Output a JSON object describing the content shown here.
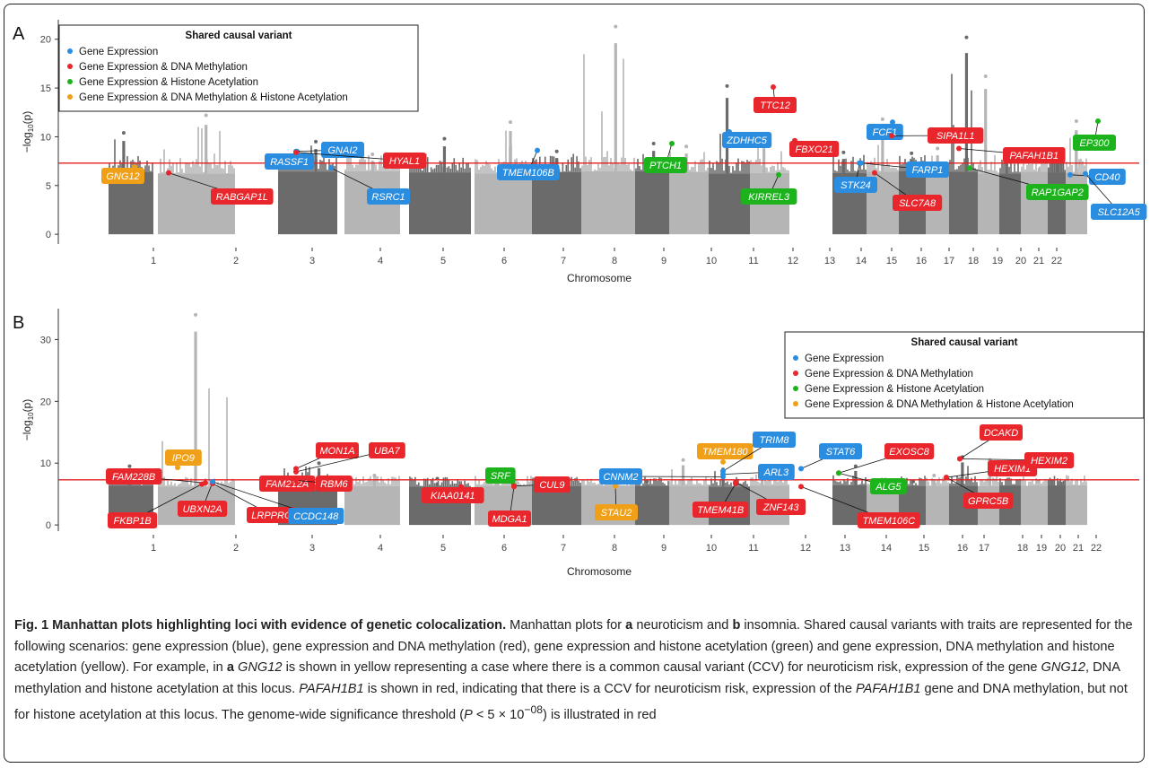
{
  "chart_data": [
    {
      "type": "scatter",
      "panel_label": "A",
      "xlabel": "Chromosome",
      "ylabel": "−log10(p)",
      "ylim": [
        -1,
        22
      ],
      "yticks": [
        0,
        5,
        10,
        15,
        20
      ],
      "x_ticks": [
        "1",
        "2",
        "3",
        "4",
        "5",
        "6",
        "7",
        "8",
        "9",
        "10",
        "11",
        "12",
        "13",
        "14",
        "15",
        "16",
        "17",
        "18",
        "19",
        "20",
        "21",
        "22"
      ],
      "threshold": 7.3,
      "legend": {
        "title": "Shared causal variant",
        "placement": "top-left",
        "entries": [
          {
            "label": "Gene Expression",
            "color": "#2b8de0"
          },
          {
            "label": "Gene Expression & DNA Methylation",
            "color": "#e8262b"
          },
          {
            "label": "Gene Expression & Histone Acetylation",
            "color": "#1db31d"
          },
          {
            "label": "Gene Expression & DNA Methylation & Histone Acetylation",
            "color": "#f0a018"
          }
        ]
      },
      "chromosome_peaks": [
        {
          "chr": 1,
          "max": 10.4
        },
        {
          "chr": 2,
          "max": 12.2
        },
        {
          "chr": 3,
          "max": 9.5
        },
        {
          "chr": 4,
          "max": 8.2
        },
        {
          "chr": 5,
          "max": 9.8
        },
        {
          "chr": 6,
          "max": 11.5
        },
        {
          "chr": 7,
          "max": 8.5
        },
        {
          "chr": 8,
          "max": 21.3
        },
        {
          "chr": 9,
          "max": 9.3
        },
        {
          "chr": 10,
          "max": 9.0
        },
        {
          "chr": 11,
          "max": 15.2
        },
        {
          "chr": 12,
          "max": 9.6
        },
        {
          "chr": 13,
          "max": 8.4
        },
        {
          "chr": 14,
          "max": 11.8
        },
        {
          "chr": 15,
          "max": 8.3
        },
        {
          "chr": 16,
          "max": 8.8
        },
        {
          "chr": 17,
          "max": 20.2
        },
        {
          "chr": 18,
          "max": 16.2
        },
        {
          "chr": 19,
          "max": 8.2
        },
        {
          "chr": 20,
          "max": 7.4
        },
        {
          "chr": 21,
          "max": 7.8
        },
        {
          "chr": 22,
          "max": 11.6
        }
      ],
      "highlighted_genes": [
        {
          "gene": "GNG12",
          "chr": 1,
          "y": 6.9,
          "color": "#f0a018"
        },
        {
          "gene": "RABGAP1L",
          "chr": 1,
          "y": 6.3,
          "color": "#e8262b"
        },
        {
          "gene": "RASSF1",
          "chr": 3,
          "y": 8.5,
          "color": "#2b8de0"
        },
        {
          "gene": "GNAI2",
          "chr": 3,
          "y": 8.5,
          "color": "#2b8de0"
        },
        {
          "gene": "HYAL1",
          "chr": 3,
          "y": 8.4,
          "color": "#e8262b"
        },
        {
          "gene": "RSRC1",
          "chr": 3,
          "y": 6.8,
          "color": "#2b8de0"
        },
        {
          "gene": "TMEM106B",
          "chr": 7,
          "y": 8.6,
          "color": "#2b8de0"
        },
        {
          "gene": "PTCH1",
          "chr": 9,
          "y": 9.3,
          "color": "#1db31d"
        },
        {
          "gene": "ZDHHC5",
          "chr": 11,
          "y": 10.5,
          "color": "#2b8de0"
        },
        {
          "gene": "TTC12",
          "chr": 11,
          "y": 15.1,
          "color": "#e8262b"
        },
        {
          "gene": "FBXO21",
          "chr": 12,
          "y": 9.6,
          "color": "#e8262b"
        },
        {
          "gene": "KIRREL3",
          "chr": 11,
          "y": 6.1,
          "color": "#1db31d"
        },
        {
          "gene": "STK24",
          "chr": 13,
          "y": 7.3,
          "color": "#2b8de0"
        },
        {
          "gene": "FCF1",
          "chr": 14,
          "y": 11.5,
          "color": "#2b8de0"
        },
        {
          "gene": "SIPA1L1",
          "chr": 14,
          "y": 10.1,
          "color": "#e8262b"
        },
        {
          "gene": "FARP1",
          "chr": 13,
          "y": 7.3,
          "color": "#2b8de0"
        },
        {
          "gene": "SLC7A8",
          "chr": 14,
          "y": 6.3,
          "color": "#e8262b"
        },
        {
          "gene": "PAFAH1B1",
          "chr": 17,
          "y": 8.8,
          "color": "#e8262b"
        },
        {
          "gene": "EP300",
          "chr": 22,
          "y": 11.6,
          "color": "#1db31d"
        },
        {
          "gene": "RAP1GAP2",
          "chr": 17,
          "y": 6.8,
          "color": "#1db31d"
        },
        {
          "gene": "CD40",
          "chr": 20,
          "y": 6.1,
          "color": "#2b8de0"
        },
        {
          "gene": "SLC12A5",
          "chr": 20,
          "y": 6.2,
          "color": "#2b8de0"
        }
      ]
    },
    {
      "type": "scatter",
      "panel_label": "B",
      "xlabel": "Chromosome",
      "ylabel": "−log10(p)",
      "ylim": [
        -1,
        35
      ],
      "yticks": [
        0,
        10,
        20,
        30
      ],
      "x_ticks": [
        "1",
        "2",
        "3",
        "4",
        "5",
        "6",
        "7",
        "8",
        "9",
        "10",
        "11",
        "12",
        "13",
        "14",
        "15",
        "16",
        "17",
        "18",
        "19",
        "20",
        "21",
        "22"
      ],
      "threshold": 7.3,
      "legend": {
        "title": "Shared causal variant",
        "placement": "top-right",
        "entries": [
          {
            "label": "Gene Expression",
            "color": "#2b8de0"
          },
          {
            "label": "Gene Expression & DNA Methylation",
            "color": "#e8262b"
          },
          {
            "label": "Gene Expression & Histone Acetylation",
            "color": "#1db31d"
          },
          {
            "label": "Gene Expression & DNA Methylation & Histone Acetylation",
            "color": "#f0a018"
          }
        ]
      },
      "chromosome_peaks": [
        {
          "chr": 1,
          "max": 9.5
        },
        {
          "chr": 2,
          "max": 34.0
        },
        {
          "chr": 3,
          "max": 10.0
        },
        {
          "chr": 4,
          "max": 8.0
        },
        {
          "chr": 5,
          "max": 7.5
        },
        {
          "chr": 6,
          "max": 8.0
        },
        {
          "chr": 7,
          "max": 7.5
        },
        {
          "chr": 8,
          "max": 7.0
        },
        {
          "chr": 9,
          "max": 7.0
        },
        {
          "chr": 10,
          "max": 10.5
        },
        {
          "chr": 11,
          "max": 9.0
        },
        {
          "chr": 12,
          "max": 9.2
        },
        {
          "chr": 13,
          "max": 9.5
        },
        {
          "chr": 14,
          "max": 7.0
        },
        {
          "chr": 15,
          "max": 7.0
        },
        {
          "chr": 16,
          "max": 8.0
        },
        {
          "chr": 17,
          "max": 11.0
        },
        {
          "chr": 18,
          "max": 10.5
        },
        {
          "chr": 19,
          "max": 6.0
        },
        {
          "chr": 20,
          "max": 7.0
        },
        {
          "chr": 21,
          "max": 5.0
        },
        {
          "chr": 22,
          "max": 5.0
        }
      ],
      "highlighted_genes": [
        {
          "gene": "FAM228B",
          "chr": 2,
          "y": 6.8,
          "color": "#e8262b"
        },
        {
          "gene": "IPO9",
          "chr": 1,
          "y": 9.3,
          "color": "#f0a018"
        },
        {
          "gene": "FKBP1B",
          "chr": 2,
          "y": 6.6,
          "color": "#e8262b"
        },
        {
          "gene": "UBXN2A",
          "chr": 2,
          "y": 6.9,
          "color": "#e8262b"
        },
        {
          "gene": "LRPPRC",
          "chr": 2,
          "y": 6.7,
          "color": "#e8262b"
        },
        {
          "gene": "FAM212A",
          "chr": 3,
          "y": 7.5,
          "color": "#e8262b"
        },
        {
          "gene": "MON1A",
          "chr": 3,
          "y": 9.1,
          "color": "#e8262b"
        },
        {
          "gene": "UBA7",
          "chr": 3,
          "y": 8.6,
          "color": "#e8262b"
        },
        {
          "gene": "RBM6",
          "chr": 3,
          "y": 7.2,
          "color": "#e8262b"
        },
        {
          "gene": "CCDC148",
          "chr": 2,
          "y": 7.0,
          "color": "#2b8de0"
        },
        {
          "gene": "KIAA0141",
          "chr": 5,
          "y": 6.2,
          "color": "#e8262b"
        },
        {
          "gene": "SRF",
          "chr": 6,
          "y": 6.4,
          "color": "#1db31d"
        },
        {
          "gene": "CUL9",
          "chr": 6,
          "y": 6.3,
          "color": "#e8262b"
        },
        {
          "gene": "MDGA1",
          "chr": 6,
          "y": 6.2,
          "color": "#e8262b"
        },
        {
          "gene": "STAU2",
          "chr": 8,
          "y": 6.3,
          "color": "#f0a018"
        },
        {
          "gene": "CNNM2",
          "chr": 10,
          "y": 7.8,
          "color": "#2b8de0"
        },
        {
          "gene": "TMEM180",
          "chr": 10,
          "y": 10.2,
          "color": "#f0a018"
        },
        {
          "gene": "TRIM8",
          "chr": 10,
          "y": 8.7,
          "color": "#2b8de0"
        },
        {
          "gene": "ARL3",
          "chr": 10,
          "y": 8.2,
          "color": "#2b8de0"
        },
        {
          "gene": "TMEM41B",
          "chr": 11,
          "y": 6.7,
          "color": "#e8262b"
        },
        {
          "gene": "ZNF143",
          "chr": 11,
          "y": 6.9,
          "color": "#e8262b"
        },
        {
          "gene": "STAT6",
          "chr": 12,
          "y": 9.1,
          "color": "#2b8de0"
        },
        {
          "gene": "TMEM106C",
          "chr": 12,
          "y": 6.2,
          "color": "#e8262b"
        },
        {
          "gene": "EXOSC8",
          "chr": 13,
          "y": 8.4,
          "color": "#e8262b"
        },
        {
          "gene": "ALG5",
          "chr": 13,
          "y": 8.4,
          "color": "#1db31d"
        },
        {
          "gene": "DCAKD",
          "chr": 17,
          "y": 10.7,
          "color": "#e8262b"
        },
        {
          "gene": "HEXIM1",
          "chr": 17,
          "y": 7.7,
          "color": "#e8262b"
        },
        {
          "gene": "HEXIM2",
          "chr": 17,
          "y": 10.7,
          "color": "#e8262b"
        },
        {
          "gene": "GPRC5B",
          "chr": 16,
          "y": 7.7,
          "color": "#e8262b"
        }
      ]
    }
  ],
  "caption": {
    "fig_label": "Fig. 1",
    "title": "Manhattan plots highlighting loci with evidence of genetic colocalization.",
    "p1": " Manhattan plots for ",
    "a": "a",
    "p2": " neuroticism and ",
    "b": "b",
    "p3": " insomnia. Shared causal variants with traits are represented for the following scenarios: gene expression (blue), gene expression and DNA methylation (red), gene expression and histone acetylation (green) and gene expression, DNA methylation and histone acetylation (yellow). For example, in ",
    "a2": "a",
    "g1": "GNG12",
    "p4": " is shown in yellow representing a case where there is a common causal variant (CCV) for neuroticism risk, expression of the gene ",
    "g2": "GNG12",
    "p5": ", DNA methylation and histone acetylation at this locus. ",
    "g3": "PAFAH1B1",
    "p6": " is shown in red, indicating that there is a CCV for neuroticism risk, expression of the ",
    "g4": "PAFAH1B1",
    "p7": " gene and DNA methylation, but not for histone acetylation at this locus. The genome-wide significance threshold (",
    "pvar": "P",
    "p8": " < 5 × 10",
    "exp": "−08",
    "p9": ") is illustrated in red"
  }
}
